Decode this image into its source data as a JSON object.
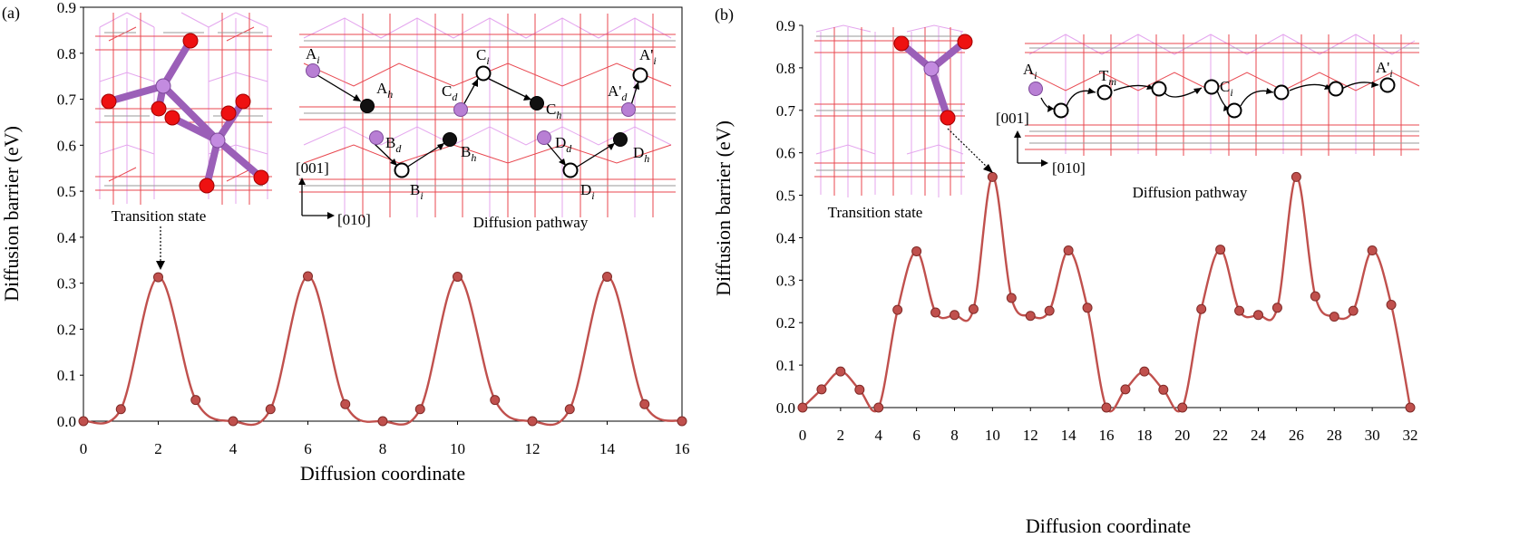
{
  "panels": [
    {
      "id": "a",
      "label": "(a)",
      "ylabel": "Diffusion barrier (eV)",
      "xlabel": "Diffusion coordinate",
      "structure_caption": "Transition state",
      "pathway_caption": "Diffusion pathway",
      "axis_001": "[001]",
      "axis_010": "[010]"
    },
    {
      "id": "b",
      "label": "(b)",
      "ylabel": "Diffusion barrier (eV)",
      "xlabel": "Diffusion coordinate",
      "structure_caption": "Transition state",
      "pathway_caption": "Diffusion pathway",
      "axis_001": "[001]",
      "axis_010": "[010]"
    }
  ],
  "pathway_a": [
    {
      "base": "A",
      "sub": "i",
      "kind": "violet"
    },
    {
      "base": "A",
      "sub": "h",
      "kind": "black"
    },
    {
      "base": "B",
      "sub": "d",
      "kind": "violet"
    },
    {
      "base": "B",
      "sub": "i",
      "kind": "open"
    },
    {
      "base": "B",
      "sub": "h",
      "kind": "black"
    },
    {
      "base": "C",
      "sub": "d",
      "kind": "violet"
    },
    {
      "base": "C",
      "sub": "i",
      "kind": "open"
    },
    {
      "base": "C",
      "sub": "h",
      "kind": "black"
    },
    {
      "base": "D",
      "sub": "d",
      "kind": "violet"
    },
    {
      "base": "D",
      "sub": "i",
      "kind": "open"
    },
    {
      "base": "D",
      "sub": "h",
      "kind": "black"
    },
    {
      "base": "A'",
      "sub": "d",
      "kind": "violet"
    },
    {
      "base": "A'",
      "sub": "i",
      "kind": "open"
    }
  ],
  "pathway_b": [
    {
      "base": "A",
      "sub": "i",
      "kind": "violet"
    },
    {
      "base": "T",
      "sub": "m",
      "kind": "open"
    },
    {
      "base": "C",
      "sub": "i",
      "kind": "open"
    },
    {
      "base": "A'",
      "sub": "i",
      "kind": "open"
    }
  ],
  "colors": {
    "curve": "#c0504d",
    "marker": "#c0504d",
    "marker_edge": "#7f2a27",
    "violet": "#b87fd4",
    "oxygen": "#ee1111",
    "lattice_red": "#e8474f",
    "lattice_magenta": "#e4a6ee"
  },
  "chart_data": [
    {
      "type": "line",
      "panel": "a",
      "xlabel": "Diffusion coordinate",
      "ylabel": "Diffusion barrier (eV)",
      "xlim": [
        0,
        16
      ],
      "ylim": [
        0,
        0.9
      ],
      "xticks": [
        0,
        2,
        4,
        6,
        8,
        10,
        12,
        14,
        16
      ],
      "yticks": [
        "0.0",
        "0.1",
        "0.2",
        "0.3",
        "0.4",
        "0.5",
        "0.6",
        "0.7",
        "0.8",
        "0.9"
      ],
      "grid": false,
      "series": [
        {
          "x": [
            0,
            1,
            2,
            3,
            4,
            5,
            6,
            7,
            8,
            9,
            10,
            11,
            12,
            13,
            14,
            15,
            16
          ],
          "y": [
            0.0,
            0.026,
            0.313,
            0.046,
            0.0,
            0.026,
            0.315,
            0.037,
            0.0,
            0.026,
            0.314,
            0.046,
            0.0,
            0.026,
            0.314,
            0.037,
            0.0
          ]
        }
      ]
    },
    {
      "type": "line",
      "panel": "b",
      "xlabel": "Diffusion coordinate",
      "ylabel": "Diffusion barrier (eV)",
      "xlim": [
        0,
        32
      ],
      "ylim": [
        0,
        0.9
      ],
      "xticks": [
        0,
        2,
        4,
        6,
        8,
        10,
        12,
        14,
        16,
        18,
        20,
        22,
        24,
        26,
        28,
        30,
        32
      ],
      "yticks": [
        "0.0",
        "0.1",
        "0.2",
        "0.3",
        "0.4",
        "0.5",
        "0.6",
        "0.7",
        "0.8",
        "0.9"
      ],
      "grid": false,
      "series": [
        {
          "x": [
            0,
            1,
            2,
            3,
            4,
            5,
            6,
            7,
            8,
            9,
            10,
            11,
            12,
            13,
            14,
            15,
            16,
            17,
            18,
            19,
            20,
            21,
            22,
            23,
            24,
            25,
            26,
            27,
            28,
            29,
            30,
            31,
            32
          ],
          "y": [
            0.0,
            0.043,
            0.085,
            0.042,
            0.0,
            0.23,
            0.368,
            0.224,
            0.218,
            0.232,
            0.543,
            0.258,
            0.216,
            0.228,
            0.37,
            0.235,
            0.0,
            0.043,
            0.085,
            0.042,
            0.0,
            0.232,
            0.372,
            0.228,
            0.218,
            0.235,
            0.543,
            0.262,
            0.214,
            0.228,
            0.37,
            0.242,
            0.0
          ]
        }
      ]
    }
  ]
}
